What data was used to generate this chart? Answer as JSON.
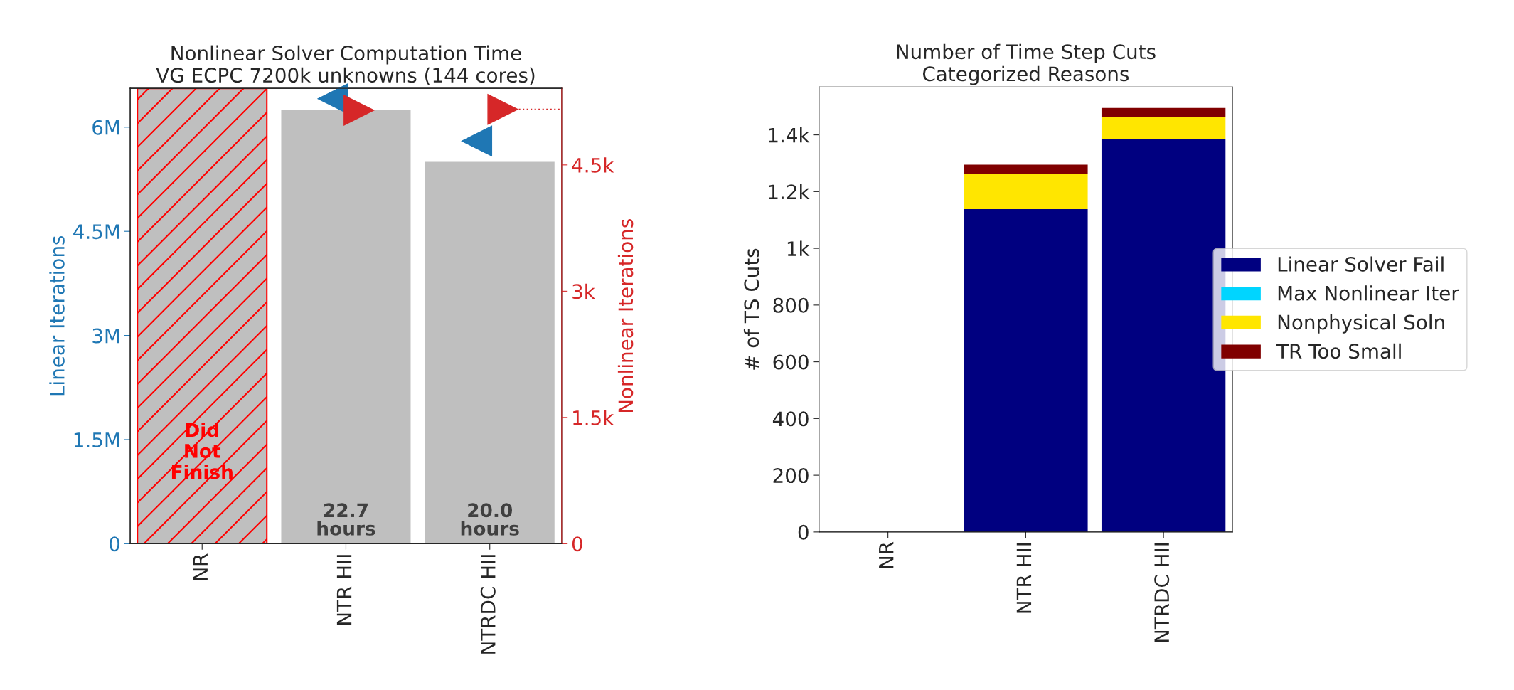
{
  "chart_data": [
    {
      "type": "bar",
      "title": "Nonlinear Solver Computation Time\nVG ECPC 7200k unknowns (144 cores)",
      "ylabel": "Linear Iterations",
      "y2label": "Nonlinear Iterations",
      "categories": [
        "NR",
        "NTR HII",
        "NTRDC HII"
      ],
      "series": [
        {
          "type": "bar",
          "color": "#bfbfbf",
          "values": [
            null,
            6250000,
            5500000
          ]
        },
        {
          "type": "scatter",
          "axis": "y",
          "color": "#1f77b4",
          "values": [
            null,
            6410000,
            5800000
          ]
        },
        {
          "type": "scatter",
          "axis": "y2",
          "color": "#d62728",
          "values": [
            null,
            5150,
            5160
          ]
        }
      ],
      "marker": "triangle",
      "ylim": [
        0,
        6560000
      ],
      "yticks": [
        0,
        {
          "value": 1500000,
          "label": "1.5M"
        },
        {
          "value": 3000000,
          "label": "3M"
        },
        {
          "value": 4500000,
          "label": "4.5M"
        },
        {
          "value": 6000000,
          "label": "6M"
        }
      ],
      "y2lim": [
        0,
        5410
      ],
      "y2ticks": [
        0,
        {
          "value": 1500,
          "label": "1.5k"
        },
        {
          "value": 3000,
          "label": "3k"
        },
        {
          "value": 4500,
          "label": "4.5k"
        }
      ],
      "bands": [
        {
          "axis": "x",
          "from": "NR",
          "to": "NR",
          "label": "Did\nNot\nFinish",
          "color": "#ff0000"
        }
      ],
      "ref_lines": [
        {
          "axis": "y2",
          "value": 5160,
          "color": "#d62728",
          "line_style": "dotted"
        }
      ],
      "annotations": [
        {
          "text": "22.7\nhours",
          "x": "NTR HII",
          "y": 0
        },
        {
          "text": "20.0\nhours",
          "x": "NTRDC HII",
          "y": 0
        }
      ],
      "grid": false,
      "legend": false
    },
    {
      "type": "bar",
      "stacked": true,
      "title": "Number of Time Step Cuts\nCategorized Reasons",
      "ylabel": "# of TS Cuts",
      "categories": [
        "NR",
        "NTR HII",
        "NTRDC HII"
      ],
      "series": [
        {
          "name": "Linear Solver Fail",
          "color": "#000080",
          "values": [
            null,
            1138,
            1385
          ]
        },
        {
          "name": "Max Nonlinear Iter",
          "color": "#00d5ff",
          "values": [
            null,
            0,
            0
          ]
        },
        {
          "name": "Nonphysical Soln",
          "color": "#ffe600",
          "values": [
            null,
            123,
            77
          ]
        },
        {
          "name": "TR Too Small",
          "color": "#800000",
          "values": [
            null,
            34,
            33
          ]
        }
      ],
      "ylim": [
        0,
        1569
      ],
      "yticks": [
        0,
        200,
        400,
        600,
        800,
        {
          "value": 1000,
          "label": "1k"
        },
        {
          "value": 1200,
          "label": "1.2k"
        },
        {
          "value": 1400,
          "label": "1.4k"
        }
      ],
      "grid": false,
      "legend": "right"
    }
  ]
}
